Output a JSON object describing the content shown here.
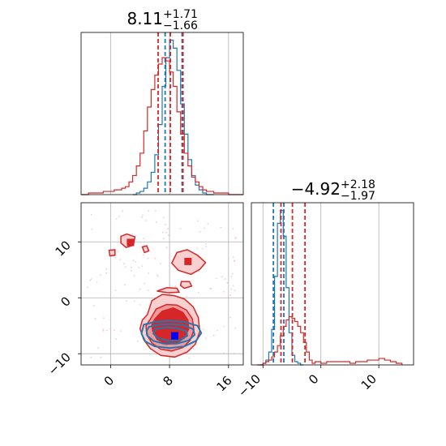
{
  "colors": {
    "red": "#d62728",
    "blue": "#1f77b4",
    "red_fill_dark": "#d62728",
    "red_fill_mid": "#ee9a9b",
    "red_fill_light": "#f9d0d0",
    "grid": "#b0b0b0",
    "scatter": "#e8b8bc"
  },
  "chart_data": [
    {
      "type": "histogram",
      "panel": "top-left",
      "title": {
        "value": "8.11",
        "plus": "+1.71",
        "minus": "−1.66"
      },
      "xlim": [
        -4,
        18
      ],
      "xticks": [
        0,
        8,
        16
      ],
      "grid": true,
      "series": [
        {
          "color": "#1f77b4",
          "bin_edges": [
            3.0,
            3.5,
            4.0,
            4.5,
            5.0,
            5.5,
            6.0,
            6.5,
            7.0,
            7.5,
            8.0,
            8.5,
            9.0,
            9.5,
            10.0,
            10.5,
            11.0,
            11.5,
            12.0,
            12.5,
            13.0,
            13.5,
            14.0
          ],
          "counts": [
            0,
            1,
            2,
            4,
            8,
            14,
            25,
            44,
            68,
            86,
            97,
            92,
            78,
            57,
            38,
            22,
            12,
            6,
            3,
            1,
            0,
            0
          ],
          "quantiles": [
            7.4,
            9.7
          ]
        },
        {
          "color": "#d62728",
          "bin_edges": [
            -4.0,
            -3.0,
            -2.0,
            -1.0,
            0.0,
            0.5,
            1.0,
            1.5,
            2.0,
            2.5,
            3.0,
            3.5,
            4.0,
            4.5,
            5.0,
            5.5,
            6.0,
            6.5,
            7.0,
            7.5,
            8.0,
            8.5,
            9.0,
            9.5,
            10.0,
            10.5,
            11.0,
            11.5,
            12.0,
            12.5,
            13.0,
            13.5,
            14.0,
            15.0,
            16.0,
            17.0,
            18.0
          ],
          "counts": [
            0,
            1,
            1,
            2,
            2,
            3,
            3,
            4,
            5,
            8,
            12,
            18,
            26,
            40,
            55,
            66,
            75,
            82,
            86,
            84,
            77,
            68,
            52,
            38,
            26,
            18,
            11,
            8,
            5,
            3,
            2,
            2,
            1,
            1,
            0,
            0
          ],
          "quantiles": [
            6.45,
            8.11,
            9.82
          ]
        }
      ]
    },
    {
      "type": "histogram",
      "panel": "bottom-right",
      "title": {
        "value": "−4.92",
        "plus": "+2.18",
        "minus": "−1.97"
      },
      "xlim": [
        -12,
        16
      ],
      "xticks": [
        -10,
        0,
        10
      ],
      "grid": true,
      "series": [
        {
          "color": "#1f77b4",
          "bin_edges": [
            -10.5,
            -10.0,
            -9.5,
            -9.0,
            -8.5,
            -8.0,
            -7.5,
            -7.0,
            -6.5,
            -6.0,
            -5.5,
            -5.0,
            -4.5,
            -4.0,
            -3.5,
            -3.0
          ],
          "counts": [
            0,
            1,
            3,
            8,
            22,
            55,
            88,
            96,
            80,
            48,
            20,
            6,
            2,
            1,
            0
          ],
          "quantiles": [
            -8.2,
            -6.4
          ]
        },
        {
          "color": "#d62728",
          "bin_edges": [
            -11.0,
            -10.0,
            -9.5,
            -9.0,
            -8.5,
            -8.0,
            -7.5,
            -7.0,
            -6.5,
            -6.0,
            -5.5,
            -5.0,
            -4.5,
            -4.0,
            -3.5,
            -3.0,
            -2.5,
            -2.0,
            -1.5,
            -1.0,
            0.0,
            1.0,
            2.0,
            3.0,
            4.0,
            5.0,
            6.0,
            7.0,
            8.0,
            9.0,
            10.0,
            11.0,
            12.0,
            13.0,
            14.0
          ],
          "counts": [
            0,
            1,
            2,
            3,
            5,
            8,
            12,
            18,
            24,
            28,
            30,
            29,
            27,
            24,
            20,
            14,
            8,
            3,
            1,
            2,
            1,
            2,
            2,
            2,
            2,
            1,
            2,
            2,
            3,
            3,
            4,
            3,
            2,
            1
          ],
          "quantiles": [
            -6.89,
            -4.92,
            -2.74
          ]
        }
      ]
    },
    {
      "type": "contour",
      "panel": "bottom-left",
      "xlim": [
        -4,
        18
      ],
      "ylim": [
        -12,
        17
      ],
      "xticks": [
        0,
        8,
        16
      ],
      "yticks": [
        -10,
        0,
        10
      ],
      "grid": true,
      "points": [
        {
          "x": 2.7,
          "y": 9.9,
          "color": "#d62728"
        },
        {
          "x": 10.5,
          "y": 6.5,
          "color": "#d62728"
        },
        {
          "x": 8.7,
          "y": -6.8,
          "color": "#0000ff"
        }
      ],
      "red_contours": {
        "outer": [
          [
            5.0,
            -3.0
          ],
          [
            5.6,
            -0.5
          ],
          [
            7.0,
            0.6
          ],
          [
            8.6,
            0.4
          ],
          [
            10.0,
            -0.2
          ],
          [
            11.2,
            -1.6
          ],
          [
            11.9,
            -3.5
          ],
          [
            12.1,
            -6.0
          ],
          [
            11.5,
            -8.3
          ],
          [
            10.4,
            -9.7
          ],
          [
            8.7,
            -10.6
          ],
          [
            6.8,
            -10.3
          ],
          [
            5.4,
            -9.1
          ],
          [
            4.5,
            -7.5
          ],
          [
            4.0,
            -5.5
          ],
          [
            4.3,
            -4.0
          ]
        ],
        "middle": [
          [
            5.4,
            -3.8
          ],
          [
            6.2,
            -2.0
          ],
          [
            7.6,
            -1.2
          ],
          [
            9.0,
            -1.3
          ],
          [
            10.3,
            -2.2
          ],
          [
            11.1,
            -3.8
          ],
          [
            11.3,
            -5.8
          ],
          [
            10.8,
            -7.6
          ],
          [
            9.8,
            -8.9
          ],
          [
            8.3,
            -9.5
          ],
          [
            6.8,
            -9.2
          ],
          [
            5.6,
            -8.1
          ],
          [
            4.9,
            -6.6
          ],
          [
            4.8,
            -5.0
          ]
        ],
        "inner": [
          [
            6.0,
            -3.8
          ],
          [
            7.0,
            -2.4
          ],
          [
            8.5,
            -1.8
          ],
          [
            9.8,
            -2.6
          ],
          [
            10.5,
            -4.0
          ],
          [
            10.6,
            -5.6
          ],
          [
            10.0,
            -7.2
          ],
          [
            8.9,
            -8.2
          ],
          [
            7.5,
            -8.3
          ],
          [
            6.3,
            -7.4
          ],
          [
            5.7,
            -5.9
          ],
          [
            5.6,
            -4.8
          ]
        ],
        "islands": [
          [
            [
              1.4,
              11.0
            ],
            [
              2.2,
              11.4
            ],
            [
              3.3,
              10.9
            ],
            [
              3.1,
              9.4
            ],
            [
              2.1,
              9.0
            ],
            [
              1.4,
              9.8
            ]
          ],
          [
            [
              9.0,
              8.1
            ],
            [
              10.4,
              8.6
            ],
            [
              11.8,
              7.6
            ],
            [
              12.9,
              6.3
            ],
            [
              12.1,
              5.1
            ],
            [
              10.9,
              4.2
            ],
            [
              9.2,
              4.9
            ],
            [
              8.3,
              6.2
            ]
          ],
          [
            [
              -0.2,
              8.5
            ],
            [
              0.6,
              8.6
            ],
            [
              0.6,
              7.6
            ],
            [
              -0.1,
              7.5
            ]
          ],
          [
            [
              4.3,
              9.1
            ],
            [
              4.9,
              9.3
            ],
            [
              5.2,
              8.4
            ],
            [
              4.6,
              8.1
            ]
          ],
          [
            [
              9.6,
              2.9
            ],
            [
              10.7,
              2.9
            ],
            [
              11.0,
              2.1
            ],
            [
              10.0,
              1.7
            ],
            [
              9.5,
              2.2
            ]
          ],
          [
            [
              6.3,
              1.2
            ],
            [
              7.6,
              1.8
            ],
            [
              9.0,
              1.7
            ],
            [
              9.3,
              1.0
            ],
            [
              7.8,
              0.9
            ]
          ]
        ]
      },
      "blue_contours": {
        "outer": [
          [
            4.5,
            -4.8
          ],
          [
            6.0,
            -4.3
          ],
          [
            8.0,
            -4.1
          ],
          [
            10.0,
            -4.3
          ],
          [
            11.8,
            -5.0
          ],
          [
            12.3,
            -6.3
          ],
          [
            11.6,
            -7.7
          ],
          [
            10.0,
            -8.7
          ],
          [
            8.0,
            -9.0
          ],
          [
            6.0,
            -8.7
          ],
          [
            4.7,
            -7.8
          ],
          [
            4.2,
            -6.4
          ]
        ],
        "middle": [
          [
            5.2,
            -5.2
          ],
          [
            6.6,
            -4.8
          ],
          [
            8.2,
            -4.7
          ],
          [
            9.9,
            -4.9
          ],
          [
            11.2,
            -5.6
          ],
          [
            11.4,
            -6.6
          ],
          [
            10.6,
            -7.6
          ],
          [
            9.0,
            -8.2
          ],
          [
            7.2,
            -8.2
          ],
          [
            5.8,
            -7.7
          ],
          [
            5.0,
            -6.8
          ],
          [
            4.9,
            -5.9
          ]
        ],
        "inner": [
          [
            6.0,
            -5.6
          ],
          [
            7.4,
            -5.3
          ],
          [
            9.0,
            -5.4
          ],
          [
            10.3,
            -6.0
          ],
          [
            10.4,
            -6.8
          ],
          [
            9.4,
            -7.6
          ],
          [
            7.8,
            -7.7
          ],
          [
            6.4,
            -7.2
          ],
          [
            5.8,
            -6.4
          ]
        ]
      }
    }
  ]
}
